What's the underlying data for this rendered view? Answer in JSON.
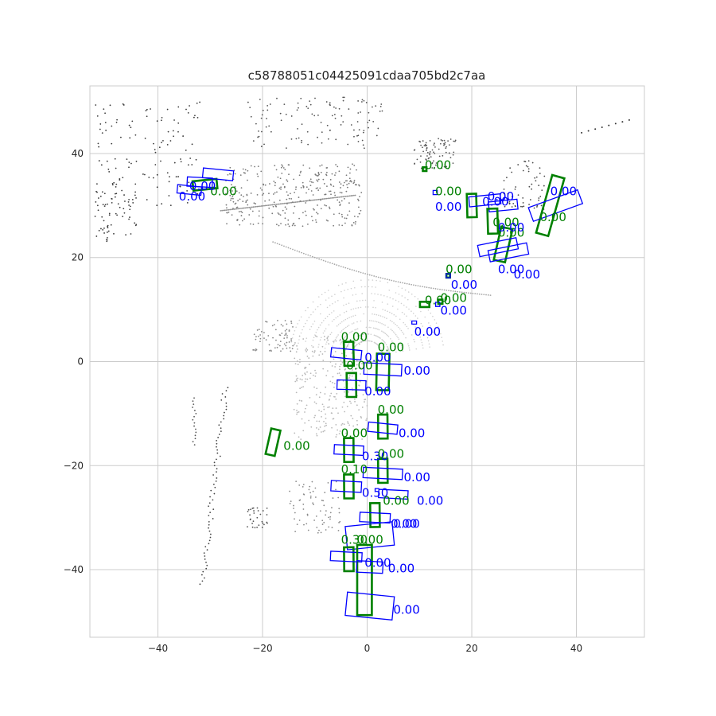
{
  "chart_data": {
    "type": "scatter",
    "title": "c58788051c04425091cdaa705bd2c7aa",
    "xlabel": "",
    "ylabel": "",
    "xlim": [
      -53,
      53
    ],
    "ylim": [
      -53,
      53
    ],
    "xticks": [
      -40,
      -20,
      0,
      20,
      40
    ],
    "yticks": [
      40,
      20,
      0,
      -20,
      -40
    ],
    "xtick_labels": [
      "−40",
      "−20",
      "0",
      "20",
      "40"
    ],
    "ytick_labels": [
      "40",
      "20",
      "0",
      "−20",
      "−40"
    ],
    "grid": true,
    "colors": {
      "ground_truth": "#008000",
      "prediction": "#0000ff",
      "grid": "#cccccc",
      "frame": "#cccccc"
    },
    "boxes": [
      {
        "kind": "gt",
        "x": -31,
        "y": 34,
        "w": 1.8,
        "l": 4.6,
        "yaw": 0.1,
        "score": "0.00",
        "label_x": -30,
        "label_y": 32
      },
      {
        "kind": "pred",
        "x": -28.5,
        "y": 36,
        "w": 1.9,
        "l": 5.8,
        "yaw": -0.1,
        "score": "",
        "label_x": 0,
        "label_y": 0
      },
      {
        "kind": "pred",
        "x": -32,
        "y": 34.5,
        "w": 1.8,
        "l": 4.8,
        "yaw": -0.05,
        "score": "0.00",
        "label_x": -36,
        "label_y": 31
      },
      {
        "kind": "pred",
        "x": -34,
        "y": 33,
        "w": 1.6,
        "l": 4.6,
        "yaw": -0.1,
        "score": "0.00",
        "label_x": -34,
        "label_y": 33
      },
      {
        "kind": "gt",
        "x": 11,
        "y": 37,
        "w": 0.7,
        "l": 0.7,
        "yaw": 0,
        "score": "0.00",
        "label_x": 11,
        "label_y": 37
      },
      {
        "kind": "gt",
        "x": 20,
        "y": 30,
        "w": 1.8,
        "l": 4.5,
        "yaw": 1.6,
        "score": "0.00",
        "label_x": 13,
        "label_y": 32
      },
      {
        "kind": "pred",
        "x": 13,
        "y": 32.5,
        "w": 0.8,
        "l": 0.8,
        "yaw": 0,
        "score": "0.00",
        "label_x": 13,
        "label_y": 29
      },
      {
        "kind": "pred",
        "x": 22.5,
        "y": 31,
        "w": 1.9,
        "l": 6.0,
        "yaw": 0.1,
        "score": "0.00",
        "label_x": 22,
        "label_y": 30
      },
      {
        "kind": "pred",
        "x": 26,
        "y": 30,
        "w": 1.9,
        "l": 5.5,
        "yaw": 0.1,
        "score": "0.00",
        "label_x": 23,
        "label_y": 31
      },
      {
        "kind": "gt",
        "x": 24,
        "y": 27,
        "w": 1.9,
        "l": 4.8,
        "yaw": 1.6,
        "score": "0.00",
        "label_x": 24,
        "label_y": 26
      },
      {
        "kind": "gt",
        "x": 35,
        "y": 30,
        "w": 2.4,
        "l": 11.5,
        "yaw": 1.3,
        "score": "0.00",
        "label_x": 33,
        "label_y": 27
      },
      {
        "kind": "pred",
        "x": 36,
        "y": 30,
        "w": 2.8,
        "l": 10.0,
        "yaw": 0.35,
        "score": "0.00",
        "label_x": 35,
        "label_y": 32
      },
      {
        "kind": "gt",
        "x": 26,
        "y": 22.5,
        "w": 2.2,
        "l": 6.5,
        "yaw": 1.35,
        "score": "0.00",
        "label_x": 25,
        "label_y": 24
      },
      {
        "kind": "pred",
        "x": 25,
        "y": 22,
        "w": 2.2,
        "l": 7.5,
        "yaw": 0.2,
        "score": "0.00",
        "label_x": 25,
        "label_y": 25
      },
      {
        "kind": "pred",
        "x": 27,
        "y": 21,
        "w": 2.2,
        "l": 7.5,
        "yaw": 0.2,
        "score": "0.00",
        "label_x": 28,
        "label_y": 16
      },
      {
        "kind": "gt",
        "x": 15.5,
        "y": 16.5,
        "w": 0.7,
        "l": 0.7,
        "yaw": 0,
        "score": "0.00",
        "label_x": 15,
        "label_y": 17
      },
      {
        "kind": "pred",
        "x": 15.5,
        "y": 16.5,
        "w": 0.8,
        "l": 0.8,
        "yaw": 0,
        "score": "0.00",
        "label_x": 16,
        "label_y": 14
      },
      {
        "kind": "pred",
        "x": 25,
        "y": 16,
        "w": 0,
        "l": 0,
        "yaw": 0,
        "score": "0.00",
        "label_x": 25,
        "label_y": 17
      },
      {
        "kind": "gt",
        "x": 11,
        "y": 11,
        "w": 1.0,
        "l": 1.8,
        "yaw": 0,
        "score": "0.00",
        "label_x": 11,
        "label_y": 11
      },
      {
        "kind": "gt",
        "x": 14,
        "y": 11.5,
        "w": 0.8,
        "l": 0.8,
        "yaw": 0,
        "score": "0.00",
        "label_x": 14,
        "label_y": 11.5
      },
      {
        "kind": "pred",
        "x": 13.5,
        "y": 11,
        "w": 0.8,
        "l": 0.8,
        "yaw": 0,
        "score": "0.00",
        "label_x": 14,
        "label_y": 9
      },
      {
        "kind": "pred",
        "x": 9,
        "y": 7.5,
        "w": 0.6,
        "l": 0.9,
        "yaw": 0,
        "score": "0.00",
        "label_x": 9,
        "label_y": 5
      },
      {
        "kind": "gt",
        "x": -3.5,
        "y": 1.5,
        "w": 1.8,
        "l": 4.6,
        "yaw": 1.6,
        "score": "0.00",
        "label_x": -5,
        "label_y": 4
      },
      {
        "kind": "pred",
        "x": -4,
        "y": 1.5,
        "w": 1.8,
        "l": 5.8,
        "yaw": -0.1,
        "score": "",
        "label_x": 0,
        "label_y": 0
      },
      {
        "kind": "gt",
        "x": 3,
        "y": -2,
        "w": 2.4,
        "l": 7.0,
        "yaw": 1.55,
        "score": "0.00",
        "label_x": 2,
        "label_y": 2
      },
      {
        "kind": "pred",
        "x": 3,
        "y": -1.5,
        "w": 2.2,
        "l": 7.2,
        "yaw": -0.05,
        "score": "0.00",
        "label_x": -0.5,
        "label_y": 0
      },
      {
        "kind": "pred",
        "x": 0,
        "y": -2,
        "w": 0,
        "l": 0,
        "yaw": 0,
        "score": "0.00",
        "label_x": 7,
        "label_y": -2.5
      },
      {
        "kind": "gt",
        "x": -3,
        "y": -4.5,
        "w": 1.8,
        "l": 4.6,
        "yaw": 1.58,
        "score": "0.00",
        "label_x": -4,
        "label_y": -1.5
      },
      {
        "kind": "pred",
        "x": -3,
        "y": -4.5,
        "w": 1.8,
        "l": 5.5,
        "yaw": -0.03,
        "score": "0.00",
        "label_x": -0.5,
        "label_y": -6.5
      },
      {
        "kind": "gt",
        "x": 3,
        "y": -12.5,
        "w": 1.8,
        "l": 4.6,
        "yaw": 1.58,
        "score": "0.00",
        "label_x": 2,
        "label_y": -10
      },
      {
        "kind": "pred",
        "x": 3,
        "y": -12.8,
        "w": 1.8,
        "l": 5.6,
        "yaw": -0.1,
        "score": "0.00",
        "label_x": 6,
        "label_y": -14.5
      },
      {
        "kind": "gt",
        "x": -18,
        "y": -15.5,
        "w": 1.8,
        "l": 5.0,
        "yaw": 1.35,
        "score": "0.00",
        "label_x": -16,
        "label_y": -17
      },
      {
        "kind": "gt",
        "x": -3.5,
        "y": -17,
        "w": 1.8,
        "l": 4.6,
        "yaw": 1.58,
        "score": "0.00",
        "label_x": -5,
        "label_y": -14.5
      },
      {
        "kind": "pred",
        "x": -3.5,
        "y": -17,
        "w": 1.8,
        "l": 5.6,
        "yaw": -0.05,
        "score": "0.30",
        "label_x": -1,
        "label_y": -19
      },
      {
        "kind": "gt",
        "x": 3,
        "y": -21,
        "w": 1.8,
        "l": 4.6,
        "yaw": 1.58,
        "score": "0.00",
        "label_x": 2,
        "label_y": -18.5
      },
      {
        "kind": "pred",
        "x": 3,
        "y": -21.5,
        "w": 2.0,
        "l": 7.5,
        "yaw": -0.05,
        "score": "0.00",
        "label_x": 7,
        "label_y": -23
      },
      {
        "kind": "gt",
        "x": -3.5,
        "y": -24,
        "w": 1.8,
        "l": 4.6,
        "yaw": 1.58,
        "score": "0.10",
        "label_x": -5,
        "label_y": -21.5
      },
      {
        "kind": "pred",
        "x": -4,
        "y": -24,
        "w": 2.0,
        "l": 5.8,
        "yaw": -0.05,
        "score": "0.50",
        "label_x": -1,
        "label_y": -26
      },
      {
        "kind": "pred",
        "x": 5,
        "y": -25.5,
        "w": 1.6,
        "l": 5.6,
        "yaw": -0.05,
        "score": "0.00",
        "label_x": 9.5,
        "label_y": -27.5
      },
      {
        "kind": "gt",
        "x": 1.5,
        "y": -29.5,
        "w": 1.8,
        "l": 4.6,
        "yaw": 1.58,
        "score": "0.00",
        "label_x": 3,
        "label_y": -27.5
      },
      {
        "kind": "pred",
        "x": 1.5,
        "y": -30,
        "w": 1.8,
        "l": 5.8,
        "yaw": -0.05,
        "score": "0.00",
        "label_x": 5,
        "label_y": -32
      },
      {
        "kind": "pred",
        "x": 0.5,
        "y": -33.5,
        "w": 4.5,
        "l": 9.0,
        "yaw": 0.1,
        "score": "0.00",
        "label_x": 4.5,
        "label_y": -32
      },
      {
        "kind": "gt",
        "x": -3.5,
        "y": -38,
        "w": 1.8,
        "l": 4.6,
        "yaw": 1.58,
        "score": "0.30",
        "label_x": -5,
        "label_y": -35
      },
      {
        "kind": "pred",
        "x": -4,
        "y": -37.5,
        "w": 1.8,
        "l": 6.0,
        "yaw": -0.05,
        "score": "0.00",
        "label_x": -0.5,
        "label_y": -39.5
      },
      {
        "kind": "gt",
        "x": -0.5,
        "y": -42,
        "w": 2.8,
        "l": 13.5,
        "yaw": 1.57,
        "score": "0.00",
        "label_x": -2,
        "label_y": -35
      },
      {
        "kind": "pred",
        "x": 0.5,
        "y": -39.5,
        "w": 2.2,
        "l": 5.0,
        "yaw": -0.05,
        "score": "0.00",
        "label_x": 4,
        "label_y": -40.5
      },
      {
        "kind": "pred",
        "x": 0.5,
        "y": -47,
        "w": 4.5,
        "l": 9.0,
        "yaw": -0.1,
        "score": "0.00",
        "label_x": 5,
        "label_y": -48.5
      }
    ]
  }
}
